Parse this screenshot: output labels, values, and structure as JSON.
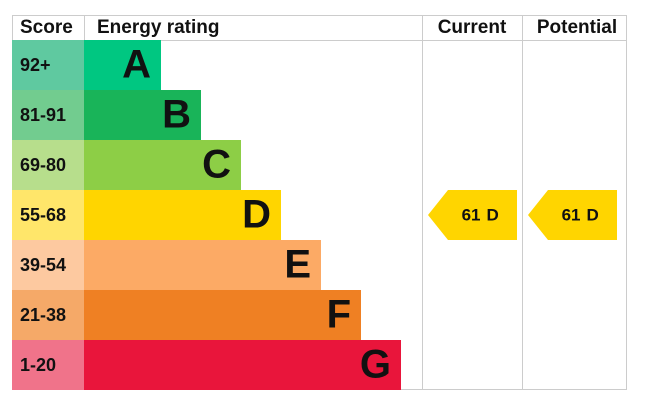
{
  "header": {
    "score": "Score",
    "rating": "Energy rating",
    "current": "Current",
    "potential": "Potential"
  },
  "bands": [
    {
      "score": "92+",
      "letter": "A",
      "color": "#00c781",
      "light": "#5fc9a0"
    },
    {
      "score": "81-91",
      "letter": "B",
      "color": "#19b459",
      "light": "#72cc8f"
    },
    {
      "score": "69-80",
      "letter": "C",
      "color": "#8dce46",
      "light": "#b7de8c"
    },
    {
      "score": "55-68",
      "letter": "D",
      "color": "#ffd500",
      "light": "#ffe66a"
    },
    {
      "score": "39-54",
      "letter": "E",
      "color": "#fcaa65",
      "light": "#fdc9a0"
    },
    {
      "score": "21-38",
      "letter": "F",
      "color": "#ef8023",
      "light": "#f5a968"
    },
    {
      "score": "1-20",
      "letter": "G",
      "color": "#e9153b",
      "light": "#f0738a"
    }
  ],
  "current": {
    "value": 61,
    "letter": "D"
  },
  "potential": {
    "value": 61,
    "letter": "D"
  }
}
